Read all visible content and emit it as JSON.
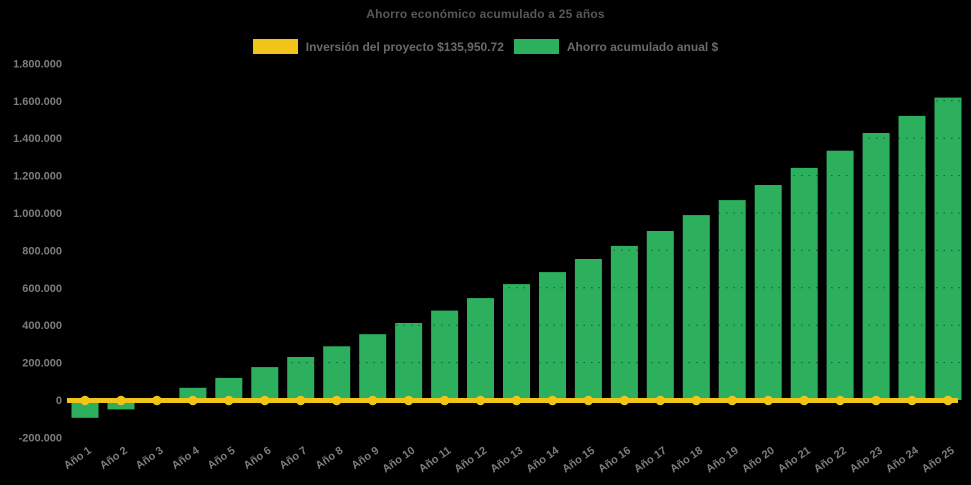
{
  "page": {
    "background": "#000000"
  },
  "chart_data": {
    "type": "bar",
    "title": "Ahorro económico acumulado a 25 años",
    "xlabel": "",
    "ylabel": "",
    "legend_position": "top",
    "grid": "faint dotted horizontal lines visible over bars",
    "ylim": [
      -200000,
      1800000
    ],
    "categories": [
      "Año 1",
      "Año 2",
      "Año 3",
      "Año 4",
      "Año 5",
      "Año 6",
      "Año 7",
      "Año 8",
      "Año 9",
      "Año 10",
      "Año 11",
      "Año 12",
      "Año 13",
      "Año 14",
      "Año 15",
      "Año 16",
      "Año 17",
      "Año 18",
      "Año 19",
      "Año 20",
      "Año 21",
      "Año 22",
      "Año 23",
      "Año 24",
      "Año 25"
    ],
    "series": [
      {
        "name": "Inversión del proyecto $135,950.72",
        "type": "line",
        "color": "#F0C419",
        "amount_label": "$135,950.72",
        "values": [
          0,
          0,
          0,
          0,
          0,
          0,
          0,
          0,
          0,
          0,
          0,
          0,
          0,
          0,
          0,
          0,
          0,
          0,
          0,
          0,
          0,
          0,
          0,
          0,
          0
        ]
      },
      {
        "name": "Ahorro acumulado anual $",
        "type": "bar",
        "color": "#2DB05E",
        "values": [
          -95000,
          -50000,
          0,
          65000,
          118000,
          176000,
          230000,
          287000,
          352000,
          412000,
          478000,
          545000,
          620000,
          684000,
          754000,
          824000,
          904000,
          989000,
          1069000,
          1150000,
          1241000,
          1333000,
          1428000,
          1519000,
          1617000
        ]
      }
    ],
    "y_ticks": {
      "values": [
        1800000,
        1600000,
        1400000,
        1200000,
        1000000,
        800000,
        600000,
        400000,
        200000,
        0,
        -200000
      ],
      "labels": [
        "1.800.000",
        "1.600.000",
        "1.400.000",
        "1.200.000",
        "1.000.000",
        "800.000",
        "600.000",
        "400.000",
        "200.000",
        "0",
        "-200.000"
      ]
    },
    "text_colors": {
      "title": "#585858",
      "legend": "#6a6a6a",
      "ticks": "#7d7d7d"
    }
  }
}
